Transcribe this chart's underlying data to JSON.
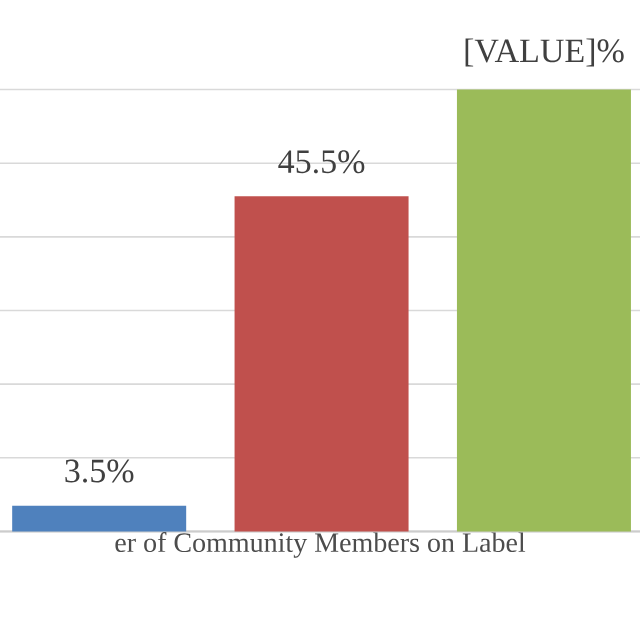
{
  "chart_data": {
    "type": "bar",
    "xlabel": "er of Community Members on Label",
    "categories": [
      null,
      null,
      null
    ],
    "values": [
      3.5,
      45.5,
      60
    ],
    "colors": [
      "#4f81bd",
      "#c0504d",
      "#9bbb59"
    ],
    "value_labels": [
      "3.5%",
      "45.5%",
      "[VALUE]%"
    ],
    "grid": "y",
    "tick_labels": false
  }
}
